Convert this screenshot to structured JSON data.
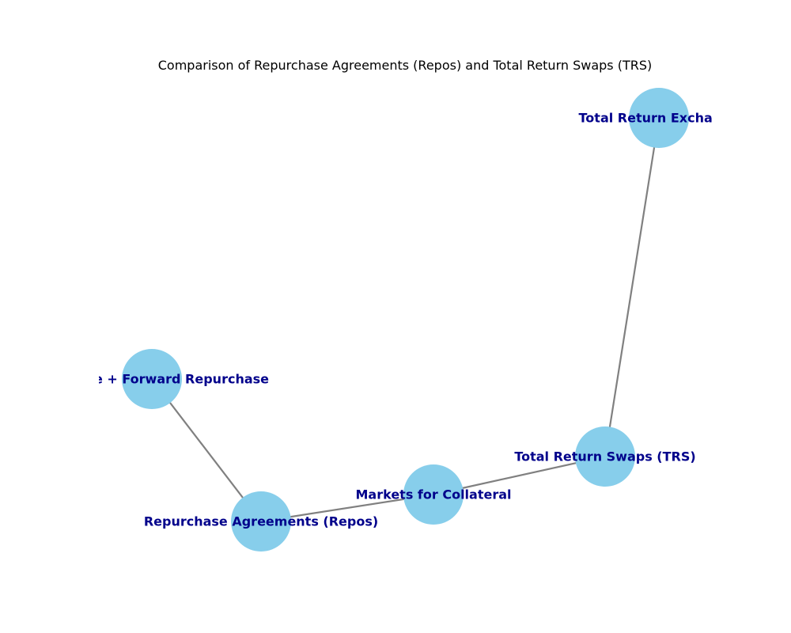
{
  "title": "Comparison of Repurchase Agreements (Repos) and Total Return Swaps (TRS)",
  "colors": {
    "node_fill": "#87CEEB",
    "edge": "#808080",
    "label": "#00008B",
    "title": "#000000"
  },
  "nodes": [
    {
      "id": "trs_exchange",
      "label": "Total Return Exchange"
    },
    {
      "id": "forward_repurchase",
      "label": "Spot Sale + Forward Repurchase"
    },
    {
      "id": "trs",
      "label": "Total Return Swaps (TRS)"
    },
    {
      "id": "collateral_markets",
      "label": "Markets for Collateral"
    },
    {
      "id": "repos",
      "label": "Repurchase Agreements (Repos)"
    }
  ],
  "edges": [
    {
      "from": "trs_exchange",
      "to": "trs"
    },
    {
      "from": "forward_repurchase",
      "to": "repos"
    },
    {
      "from": "repos",
      "to": "collateral_markets"
    },
    {
      "from": "collateral_markets",
      "to": "trs"
    }
  ]
}
